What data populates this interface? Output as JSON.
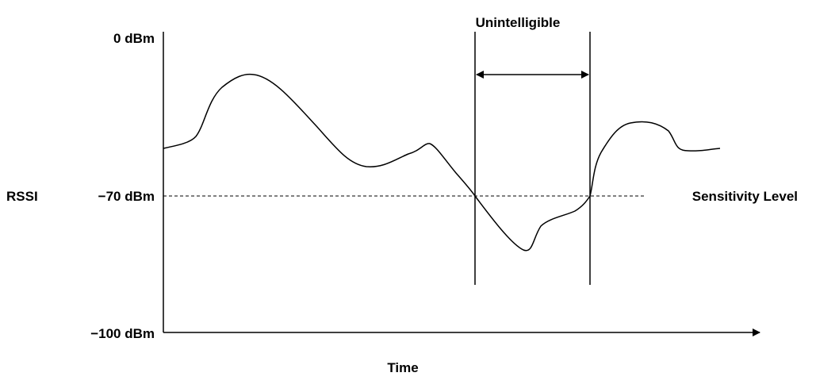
{
  "chart_data": {
    "type": "line",
    "title": "",
    "xlabel": "Time",
    "ylabel": "RSSI",
    "y_axis": {
      "range_dbm": [
        -100,
        0
      ],
      "tick_labels": [
        "0 dBm",
        "−70 dBm",
        "−100 dBm"
      ]
    },
    "reference_line": {
      "label": "Sensitivity Level",
      "value_label": "−70 dBm",
      "value_dbm": -70,
      "style": "dashed"
    },
    "annotation": {
      "label": "Unintelligible",
      "description": "double-headed arrow spanning the interval where the signal is below the sensitivity level"
    },
    "grid": false
  },
  "colors": {
    "line": "#000000",
    "background": "#ffffff"
  }
}
